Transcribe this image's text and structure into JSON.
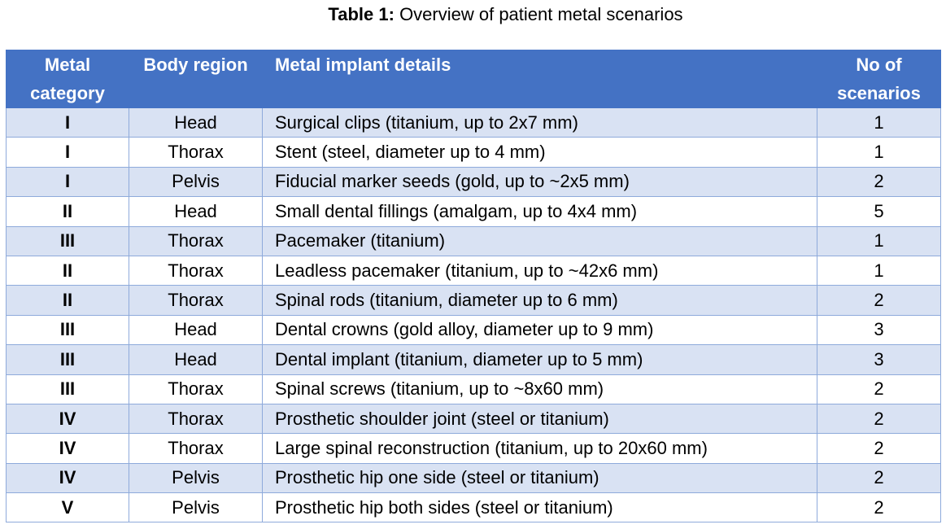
{
  "caption": {
    "label": "Table 1:",
    "text": "Overview of patient metal scenarios"
  },
  "header": {
    "category": "Metal category",
    "region": "Body region",
    "details": "Metal implant details",
    "count": "No of scenarios"
  },
  "colors": {
    "header_bg": "#4472c4",
    "band_bg": "#d9e2f3",
    "border": "#8eaadb"
  },
  "rows": [
    {
      "category": "I",
      "region": "Head",
      "details": "Surgical clips (titanium, up to 2x7 mm)",
      "count": "1"
    },
    {
      "category": "I",
      "region": "Thorax",
      "details": "Stent (steel, diameter up to 4 mm)",
      "count": "1"
    },
    {
      "category": "I",
      "region": "Pelvis",
      "details": "Fiducial marker seeds (gold, up to ~2x5 mm)",
      "count": "2"
    },
    {
      "category": "II",
      "region": "Head",
      "details": "Small dental fillings (amalgam, up to 4x4 mm)",
      "count": "5"
    },
    {
      "category": "III",
      "region": "Thorax",
      "details": "Pacemaker (titanium)",
      "count": "1"
    },
    {
      "category": "II",
      "region": "Thorax",
      "details": "Leadless pacemaker (titanium, up to ~42x6 mm)",
      "count": "1"
    },
    {
      "category": "II",
      "region": "Thorax",
      "details": "Spinal rods (titanium, diameter up to 6 mm)",
      "count": "2"
    },
    {
      "category": "III",
      "region": "Head",
      "details": "Dental crowns (gold alloy, diameter up to 9 mm)",
      "count": "3"
    },
    {
      "category": "III",
      "region": "Head",
      "details": "Dental implant (titanium, diameter up to 5 mm)",
      "count": "3"
    },
    {
      "category": "III",
      "region": "Thorax",
      "details": "Spinal screws (titanium, up to ~8x60 mm)",
      "count": "2"
    },
    {
      "category": "IV",
      "region": "Thorax",
      "details": "Prosthetic shoulder joint (steel or titanium)",
      "count": "2"
    },
    {
      "category": "IV",
      "region": "Thorax",
      "details": "Large spinal reconstruction (titanium, up to 20x60 mm)",
      "count": "2"
    },
    {
      "category": "IV",
      "region": "Pelvis",
      "details": "Prosthetic hip one side (steel or titanium)",
      "count": "2"
    },
    {
      "category": "V",
      "region": "Pelvis",
      "details": "Prosthetic hip both sides (steel or titanium)",
      "count": "2"
    }
  ]
}
